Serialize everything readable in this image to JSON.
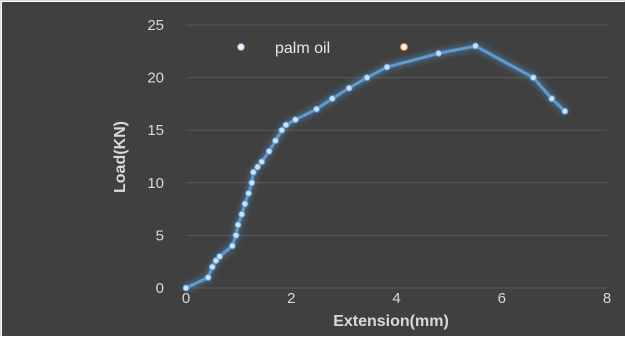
{
  "chart_data": {
    "type": "line",
    "title": "",
    "xlabel": "Extension(mm)",
    "ylabel": "Load(KN)",
    "xlim": [
      0,
      8
    ],
    "ylim": [
      0,
      25
    ],
    "x_ticks": [
      "0",
      "2",
      "4",
      "6",
      "8"
    ],
    "y_ticks": [
      "0",
      "5",
      "10",
      "15",
      "20",
      "25"
    ],
    "grid": "horizontal",
    "legend_position": "top-left",
    "background_color": "#404040",
    "series": [
      {
        "name": "palm oil",
        "color": "#5b9bd5",
        "x": [
          0,
          0.42,
          0.5,
          0.57,
          0.64,
          0.88,
          0.95,
          0.99,
          1.06,
          1.12,
          1.19,
          1.25,
          1.28,
          1.36,
          1.44,
          1.58,
          1.7,
          1.82,
          1.9,
          2.08,
          2.48,
          2.78,
          3.1,
          3.44,
          3.82,
          4.8,
          5.5,
          6.6,
          6.95,
          7.2
        ],
        "y": [
          0,
          1,
          2,
          2.6,
          3,
          4,
          5,
          6,
          7,
          8,
          9,
          10,
          11,
          11.5,
          12,
          13,
          14,
          15,
          15.5,
          16,
          17,
          18,
          19,
          20,
          21,
          22.3,
          23,
          20,
          18,
          16.8
        ]
      },
      {
        "name": "",
        "color": "#ed7d31",
        "x": [],
        "y": []
      }
    ]
  }
}
